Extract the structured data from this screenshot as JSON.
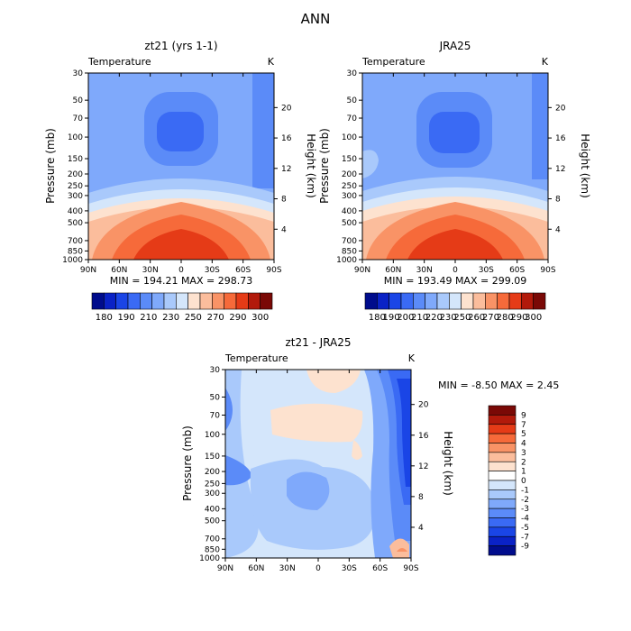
{
  "page": {
    "title": "ANN"
  },
  "axes": {
    "pressure_label": "Pressure (mb)",
    "height_label": "Height (km)",
    "pressure_ticks": [
      "30",
      "50",
      "70",
      "100",
      "150",
      "200",
      "250",
      "300",
      "400",
      "500",
      "700",
      "850",
      "1000"
    ],
    "pressure_values": [
      30,
      50,
      70,
      100,
      150,
      200,
      250,
      300,
      400,
      500,
      700,
      850,
      1000
    ],
    "height_ticks": [
      "20",
      "16",
      "12",
      "8",
      "4"
    ],
    "height_values": [
      20,
      16,
      12,
      8,
      4
    ],
    "lat_ticks": [
      "90N",
      "60N",
      "30N",
      "0",
      "30S",
      "60S",
      "90S"
    ],
    "lat_values": [
      90,
      60,
      30,
      0,
      -30,
      -60,
      -90
    ]
  },
  "chart_data": [
    {
      "id": "model",
      "type": "heatmap",
      "title": "zt21 (yrs 1-1)",
      "variable": "Temperature",
      "units": "K",
      "stats": "MIN = 194.21   MAX = 298.73",
      "min": 194.21,
      "max": 298.73,
      "xlim": [
        90,
        -90
      ],
      "ylim": [
        1000,
        30
      ],
      "levels": [
        180,
        190,
        200,
        210,
        220,
        230,
        240,
        250,
        260,
        270,
        280,
        290,
        300
      ],
      "colorbar_labels": [
        "180",
        "190",
        "210",
        "230",
        "250",
        "270",
        "290",
        "300"
      ],
      "colors": [
        "#000c8c",
        "#0a22c6",
        "#1a45e6",
        "#3a6af4",
        "#5b8bf8",
        "#7fa9fb",
        "#a9c9fb",
        "#d4e6fb",
        "#fde2cf",
        "#fbbd9c",
        "#f99366",
        "#f66a3a",
        "#e53b17",
        "#b21a0b",
        "#7a0906"
      ]
    },
    {
      "id": "obs",
      "type": "heatmap",
      "title": "JRA25",
      "variable": "Temperature",
      "units": "K",
      "stats": "MIN = 193.49   MAX = 299.09",
      "min": 193.49,
      "max": 299.09,
      "xlim": [
        90,
        -90
      ],
      "ylim": [
        1000,
        30
      ],
      "levels": [
        180,
        190,
        200,
        210,
        220,
        230,
        240,
        250,
        260,
        270,
        280,
        290,
        300
      ],
      "colorbar_labels": [
        "180",
        "190",
        "200",
        "210",
        "220",
        "230",
        "250",
        "260",
        "270",
        "280",
        "290",
        "300"
      ],
      "colors": [
        "#000c8c",
        "#0a22c6",
        "#1a45e6",
        "#3a6af4",
        "#5b8bf8",
        "#7fa9fb",
        "#a9c9fb",
        "#d4e6fb",
        "#fde2cf",
        "#fbbd9c",
        "#f99366",
        "#f66a3a",
        "#e53b17",
        "#b21a0b",
        "#7a0906"
      ]
    },
    {
      "id": "diff",
      "type": "heatmap",
      "title": "zt21 - JRA25",
      "variable": "Temperature",
      "units": "K",
      "stats": "MIN =  -8.50   MAX =   2.45",
      "min": -8.5,
      "max": 2.45,
      "xlim": [
        90,
        -90
      ],
      "ylim": [
        1000,
        30
      ],
      "levels": [
        -9,
        -7,
        -5,
        -4,
        -3,
        -2,
        -1,
        0,
        1,
        2,
        3,
        4,
        5,
        7,
        9
      ],
      "colorbar_labels": [
        "9",
        "7",
        "5",
        "4",
        "3",
        "2",
        "1",
        "0",
        "-1",
        "-2",
        "-3",
        "-4",
        "-5",
        "-7",
        "-9"
      ],
      "colors": [
        "#7a0906",
        "#b21a0b",
        "#e53b17",
        "#f66a3a",
        "#f99366",
        "#fbbd9c",
        "#fde2cf",
        "#ffffff",
        "#d4e6fb",
        "#a9c9fb",
        "#7fa9fb",
        "#5b8bf8",
        "#3a6af4",
        "#1a45e6",
        "#0a22c6",
        "#000c8c"
      ]
    }
  ]
}
